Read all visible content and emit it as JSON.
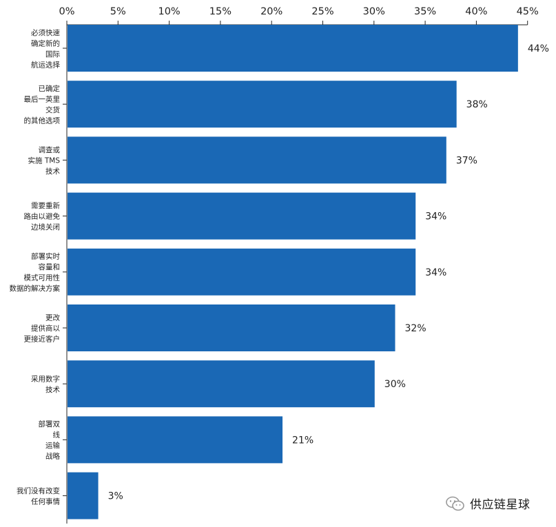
{
  "chart_data": {
    "type": "bar",
    "orientation": "horizontal",
    "categories": [
      [
        "必须快速",
        "确定新的",
        "国际",
        "航运选择"
      ],
      [
        "已确定",
        "最后一英里",
        "交货",
        "的其他选项"
      ],
      [
        "调查或",
        "实施 TMS",
        "技术"
      ],
      [
        "需要重新",
        "路由以避免",
        "边境关闭"
      ],
      [
        "部署实时",
        "容量和",
        "模式可用性",
        "数据的解决方案"
      ],
      [
        "更改",
        "提供商以",
        "更接近客户"
      ],
      [
        "采用数字",
        "技术"
      ],
      [
        "部署双",
        "线",
        "运输",
        "战略"
      ],
      [
        "我们没有改变",
        "任何事情"
      ]
    ],
    "values": [
      44,
      38,
      37,
      34,
      34,
      32,
      30,
      21,
      3
    ],
    "value_labels": [
      "44%",
      "38%",
      "37%",
      "34%",
      "34%",
      "32%",
      "30%",
      "21%",
      "3%"
    ],
    "xlim": [
      0,
      45
    ],
    "x_ticks": [
      "0%",
      "5%",
      "10%",
      "15%",
      "20%",
      "25%",
      "30%",
      "35%",
      "40%",
      "45%"
    ],
    "axis_position": "top",
    "grid": false,
    "bar_color": "#1a68b5"
  },
  "watermark": {
    "icon": "wechat-icon",
    "text": "供应链星球"
  }
}
